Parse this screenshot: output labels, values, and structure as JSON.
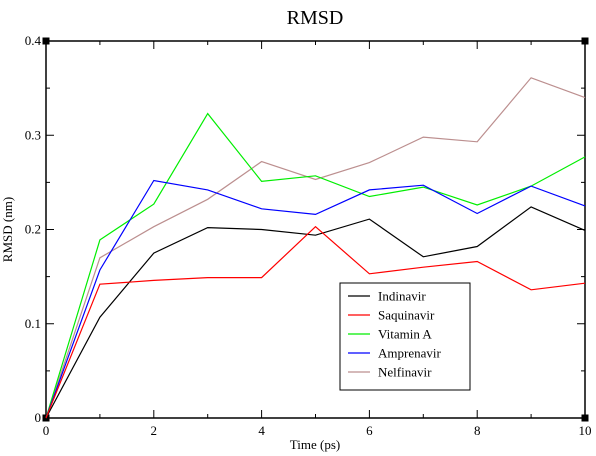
{
  "chart_data": {
    "type": "line",
    "title": "RMSD",
    "xlabel": "Time (ps)",
    "ylabel": "RMSD (nm)",
    "xlim": [
      0,
      10
    ],
    "ylim": [
      0,
      0.4
    ],
    "x_ticks": [
      "0",
      "2",
      "4",
      "6",
      "8",
      "10"
    ],
    "y_ticks": [
      "0",
      "0.1",
      "0.2",
      "0.3",
      "0.4"
    ],
    "grid": false,
    "legend_position": "lower-right",
    "x": [
      0,
      1,
      2,
      3,
      4,
      5,
      6,
      7,
      8,
      9,
      10
    ],
    "series": [
      {
        "name": "Indinavir",
        "color": "#000000",
        "values": [
          0,
          0.107,
          0.175,
          0.202,
          0.2,
          0.194,
          0.211,
          0.171,
          0.182,
          0.224,
          0.199
        ]
      },
      {
        "name": "Saquinavir",
        "color": "#ff0000",
        "values": [
          0,
          0.142,
          0.146,
          0.149,
          0.149,
          0.203,
          0.153,
          0.16,
          0.166,
          0.136,
          0.143
        ]
      },
      {
        "name": "Vitamin A",
        "color": "#00ee00",
        "values": [
          0,
          0.189,
          0.227,
          0.323,
          0.251,
          0.257,
          0.235,
          0.245,
          0.226,
          0.246,
          0.277
        ]
      },
      {
        "name": "Amprenavir",
        "color": "#0000ff",
        "values": [
          0,
          0.157,
          0.252,
          0.242,
          0.222,
          0.216,
          0.242,
          0.247,
          0.217,
          0.246,
          0.225
        ]
      },
      {
        "name": "Nelfinavir",
        "color": "#bc8f8f",
        "values": [
          0,
          0.17,
          0.203,
          0.232,
          0.272,
          0.253,
          0.271,
          0.298,
          0.293,
          0.361,
          0.34
        ]
      }
    ]
  }
}
